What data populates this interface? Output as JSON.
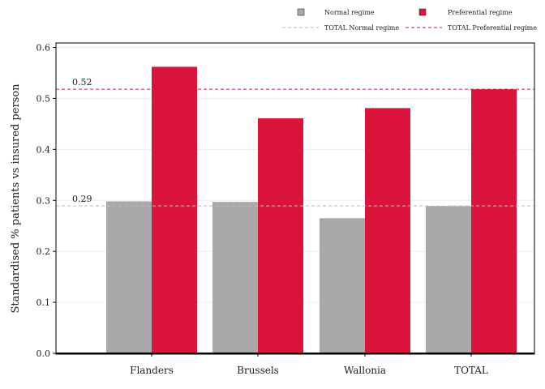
{
  "chart_data": {
    "type": "bar",
    "categories": [
      "Flanders",
      "Brussels",
      "Wallonia",
      "TOTAL"
    ],
    "series": [
      {
        "name": "Normal regime",
        "values": [
          0.298,
          0.297,
          0.265,
          0.289
        ],
        "color": "#a9a9a9"
      },
      {
        "name": "Preferential regime",
        "values": [
          0.562,
          0.461,
          0.481,
          0.518
        ],
        "color": "#dc143c"
      }
    ],
    "reference_lines": [
      {
        "name": "TOTAL Normal regime",
        "value": 0.289,
        "label": "0.29",
        "color": "#bdbdbd",
        "style": "dashed"
      },
      {
        "name": "TOTAL Preferential regime",
        "value": 0.518,
        "label": "0.52",
        "color": "#dc143c",
        "style": "dashed"
      }
    ],
    "xlabel": "",
    "ylabel": "Standardised % patients vs insured person",
    "ylim": [
      0,
      0.6
    ],
    "yticks": [
      "0.0",
      "0.1",
      "0.2",
      "0.3",
      "0.4",
      "0.5",
      "0.6"
    ],
    "grid": true,
    "legend_position": "top"
  }
}
